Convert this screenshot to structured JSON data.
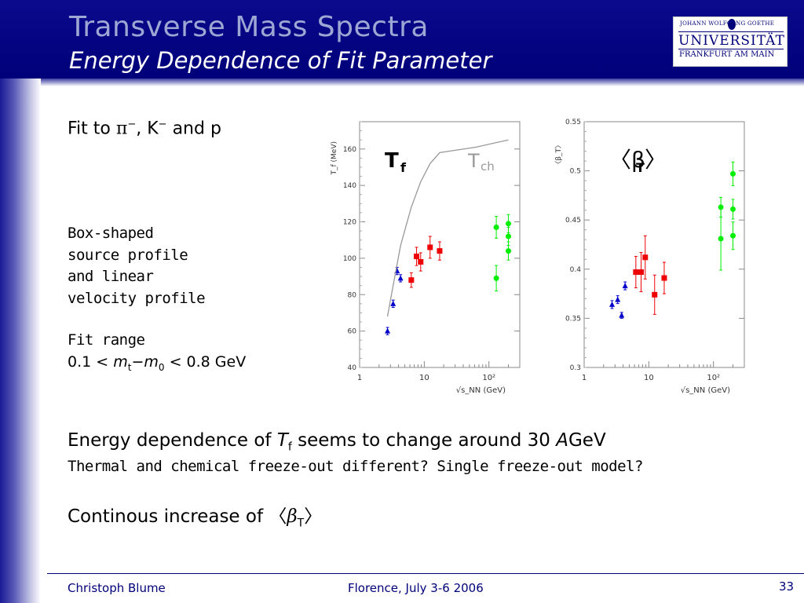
{
  "slide": {
    "title": "Transverse Mass Spectra",
    "subtitle": "Energy Dependence of Fit Parameter",
    "logo": {
      "line1": "JOHANN WOLFGANG GOETHE",
      "line2": "UNIVERSITÄT",
      "line3": "FRANKFURT AM MAIN"
    },
    "fit_to_prefix": "Fit to ",
    "fit_to_pi": "π",
    "fit_to_mid": ", K",
    "fit_to_suffix": " and p",
    "minus": "−",
    "box_lines": [
      "Box-shaped",
      "source profile",
      "and linear",
      "velocity profile"
    ],
    "fit_range_label": "Fit range",
    "fit_range_lo": "0.1 < ",
    "fit_range_m": "m",
    "fit_range_t": "t",
    "fit_range_dash": "−",
    "fit_range_m0": "m",
    "fit_range_zero": "0",
    "fit_range_hi": " < 0.8 GeV",
    "bullet1_a": "Energy dependence of ",
    "bullet1_T": "T",
    "bullet1_f": "f",
    "bullet1_b": " seems to change around 30 ",
    "bullet1_A": "A",
    "bullet1_c": "GeV",
    "bullet2": "Thermal and chemical freeze-out different? Single freeze-out model?",
    "bullet3_a": "Continous increase of ",
    "bullet3_open": "〈",
    "bullet3_beta": "β",
    "bullet3_T": "T",
    "bullet3_close": "〉",
    "footer_left": "Christoph Blume",
    "footer_center": "Florence, July 3-6 2006",
    "page_number": "33"
  },
  "colors": {
    "header": "#00007a",
    "pion": "#0000cc",
    "kaon": "#ee0000",
    "proton": "#00ee00",
    "tch_curve": "#999999"
  },
  "chart_data": [
    {
      "type": "scatter",
      "x_scale": "log",
      "ylabel": "T_f (MeV)",
      "xlabel": "√s_NN (GeV)",
      "xlim": [
        1,
        300
      ],
      "ylim": [
        40,
        175
      ],
      "x_ticks": [
        "1",
        "10",
        "10²"
      ],
      "y_ticks": [
        "40",
        "60",
        "80",
        "100",
        "120",
        "140",
        "160"
      ],
      "annotations": [
        {
          "text": "T",
          "sub": "f",
          "color": "#000000"
        },
        {
          "text": "T",
          "sub": "ch",
          "color": "#999999"
        }
      ],
      "series": [
        {
          "marker": "triangle",
          "color": "#0000cc",
          "points": [
            {
              "x": 2.7,
              "y": 60,
              "err": 2
            },
            {
              "x": 3.3,
              "y": 75,
              "err": 2
            },
            {
              "x": 3.8,
              "y": 93,
              "err": 2
            },
            {
              "x": 4.3,
              "y": 89,
              "err": 2
            }
          ]
        },
        {
          "marker": "square",
          "color": "#ee0000",
          "points": [
            {
              "x": 6.3,
              "y": 88,
              "err": 4
            },
            {
              "x": 7.6,
              "y": 101,
              "err": 5
            },
            {
              "x": 8.8,
              "y": 98,
              "err": 5
            },
            {
              "x": 12.3,
              "y": 106,
              "err": 6
            },
            {
              "x": 17.3,
              "y": 104,
              "err": 5
            }
          ]
        },
        {
          "marker": "circle",
          "color": "#00ee00",
          "points": [
            {
              "x": 130,
              "y": 89,
              "err": 7
            },
            {
              "x": 130,
              "y": 117,
              "err": 6
            },
            {
              "x": 200,
              "y": 112,
              "err": 5
            },
            {
              "x": 200,
              "y": 104,
              "err": 5
            },
            {
              "x": 200,
              "y": 119,
              "err": 5
            }
          ]
        },
        {
          "marker": "line",
          "color": "#999999",
          "points": [
            {
              "x": 2.7,
              "y": 68
            },
            {
              "x": 3.3,
              "y": 85
            },
            {
              "x": 4.3,
              "y": 107
            },
            {
              "x": 6.3,
              "y": 128
            },
            {
              "x": 8.8,
              "y": 142
            },
            {
              "x": 12.3,
              "y": 152
            },
            {
              "x": 17.3,
              "y": 158
            },
            {
              "x": 62.4,
              "y": 161
            },
            {
              "x": 200,
              "y": 165
            }
          ]
        }
      ]
    },
    {
      "type": "scatter",
      "x_scale": "log",
      "ylabel": "〈β_T〉",
      "xlabel": "√s_NN (GeV)",
      "xlim": [
        1,
        300
      ],
      "ylim": [
        0.3,
        0.55
      ],
      "x_ticks": [
        "1",
        "10",
        "10²"
      ],
      "y_ticks": [
        "0.3",
        "0.35",
        "0.4",
        "0.45",
        "0.5",
        "0.55"
      ],
      "annotations": [
        {
          "text": "〈β",
          "sub": "T",
          "close": "〉",
          "color": "#000000"
        }
      ],
      "series": [
        {
          "marker": "triangle",
          "color": "#0000cc",
          "points": [
            {
              "x": 2.7,
              "y": 0.364,
              "err": 0.004
            },
            {
              "x": 3.3,
              "y": 0.369,
              "err": 0.004
            },
            {
              "x": 3.8,
              "y": 0.353,
              "err": 0.003
            },
            {
              "x": 4.3,
              "y": 0.383,
              "err": 0.004
            }
          ]
        },
        {
          "marker": "square",
          "color": "#ee0000",
          "points": [
            {
              "x": 6.3,
              "y": 0.397,
              "err": 0.016
            },
            {
              "x": 7.6,
              "y": 0.397,
              "err": 0.02
            },
            {
              "x": 8.8,
              "y": 0.412,
              "err": 0.022
            },
            {
              "x": 12.3,
              "y": 0.374,
              "err": 0.02
            },
            {
              "x": 17.3,
              "y": 0.391,
              "err": 0.016
            }
          ]
        },
        {
          "marker": "circle",
          "color": "#00ee00",
          "points": [
            {
              "x": 130,
              "y": 0.431,
              "err": 0.032
            },
            {
              "x": 130,
              "y": 0.463,
              "err": 0.01
            },
            {
              "x": 200,
              "y": 0.497,
              "err": 0.012
            },
            {
              "x": 200,
              "y": 0.461,
              "err": 0.01
            },
            {
              "x": 200,
              "y": 0.434,
              "err": 0.014
            }
          ]
        }
      ]
    }
  ]
}
